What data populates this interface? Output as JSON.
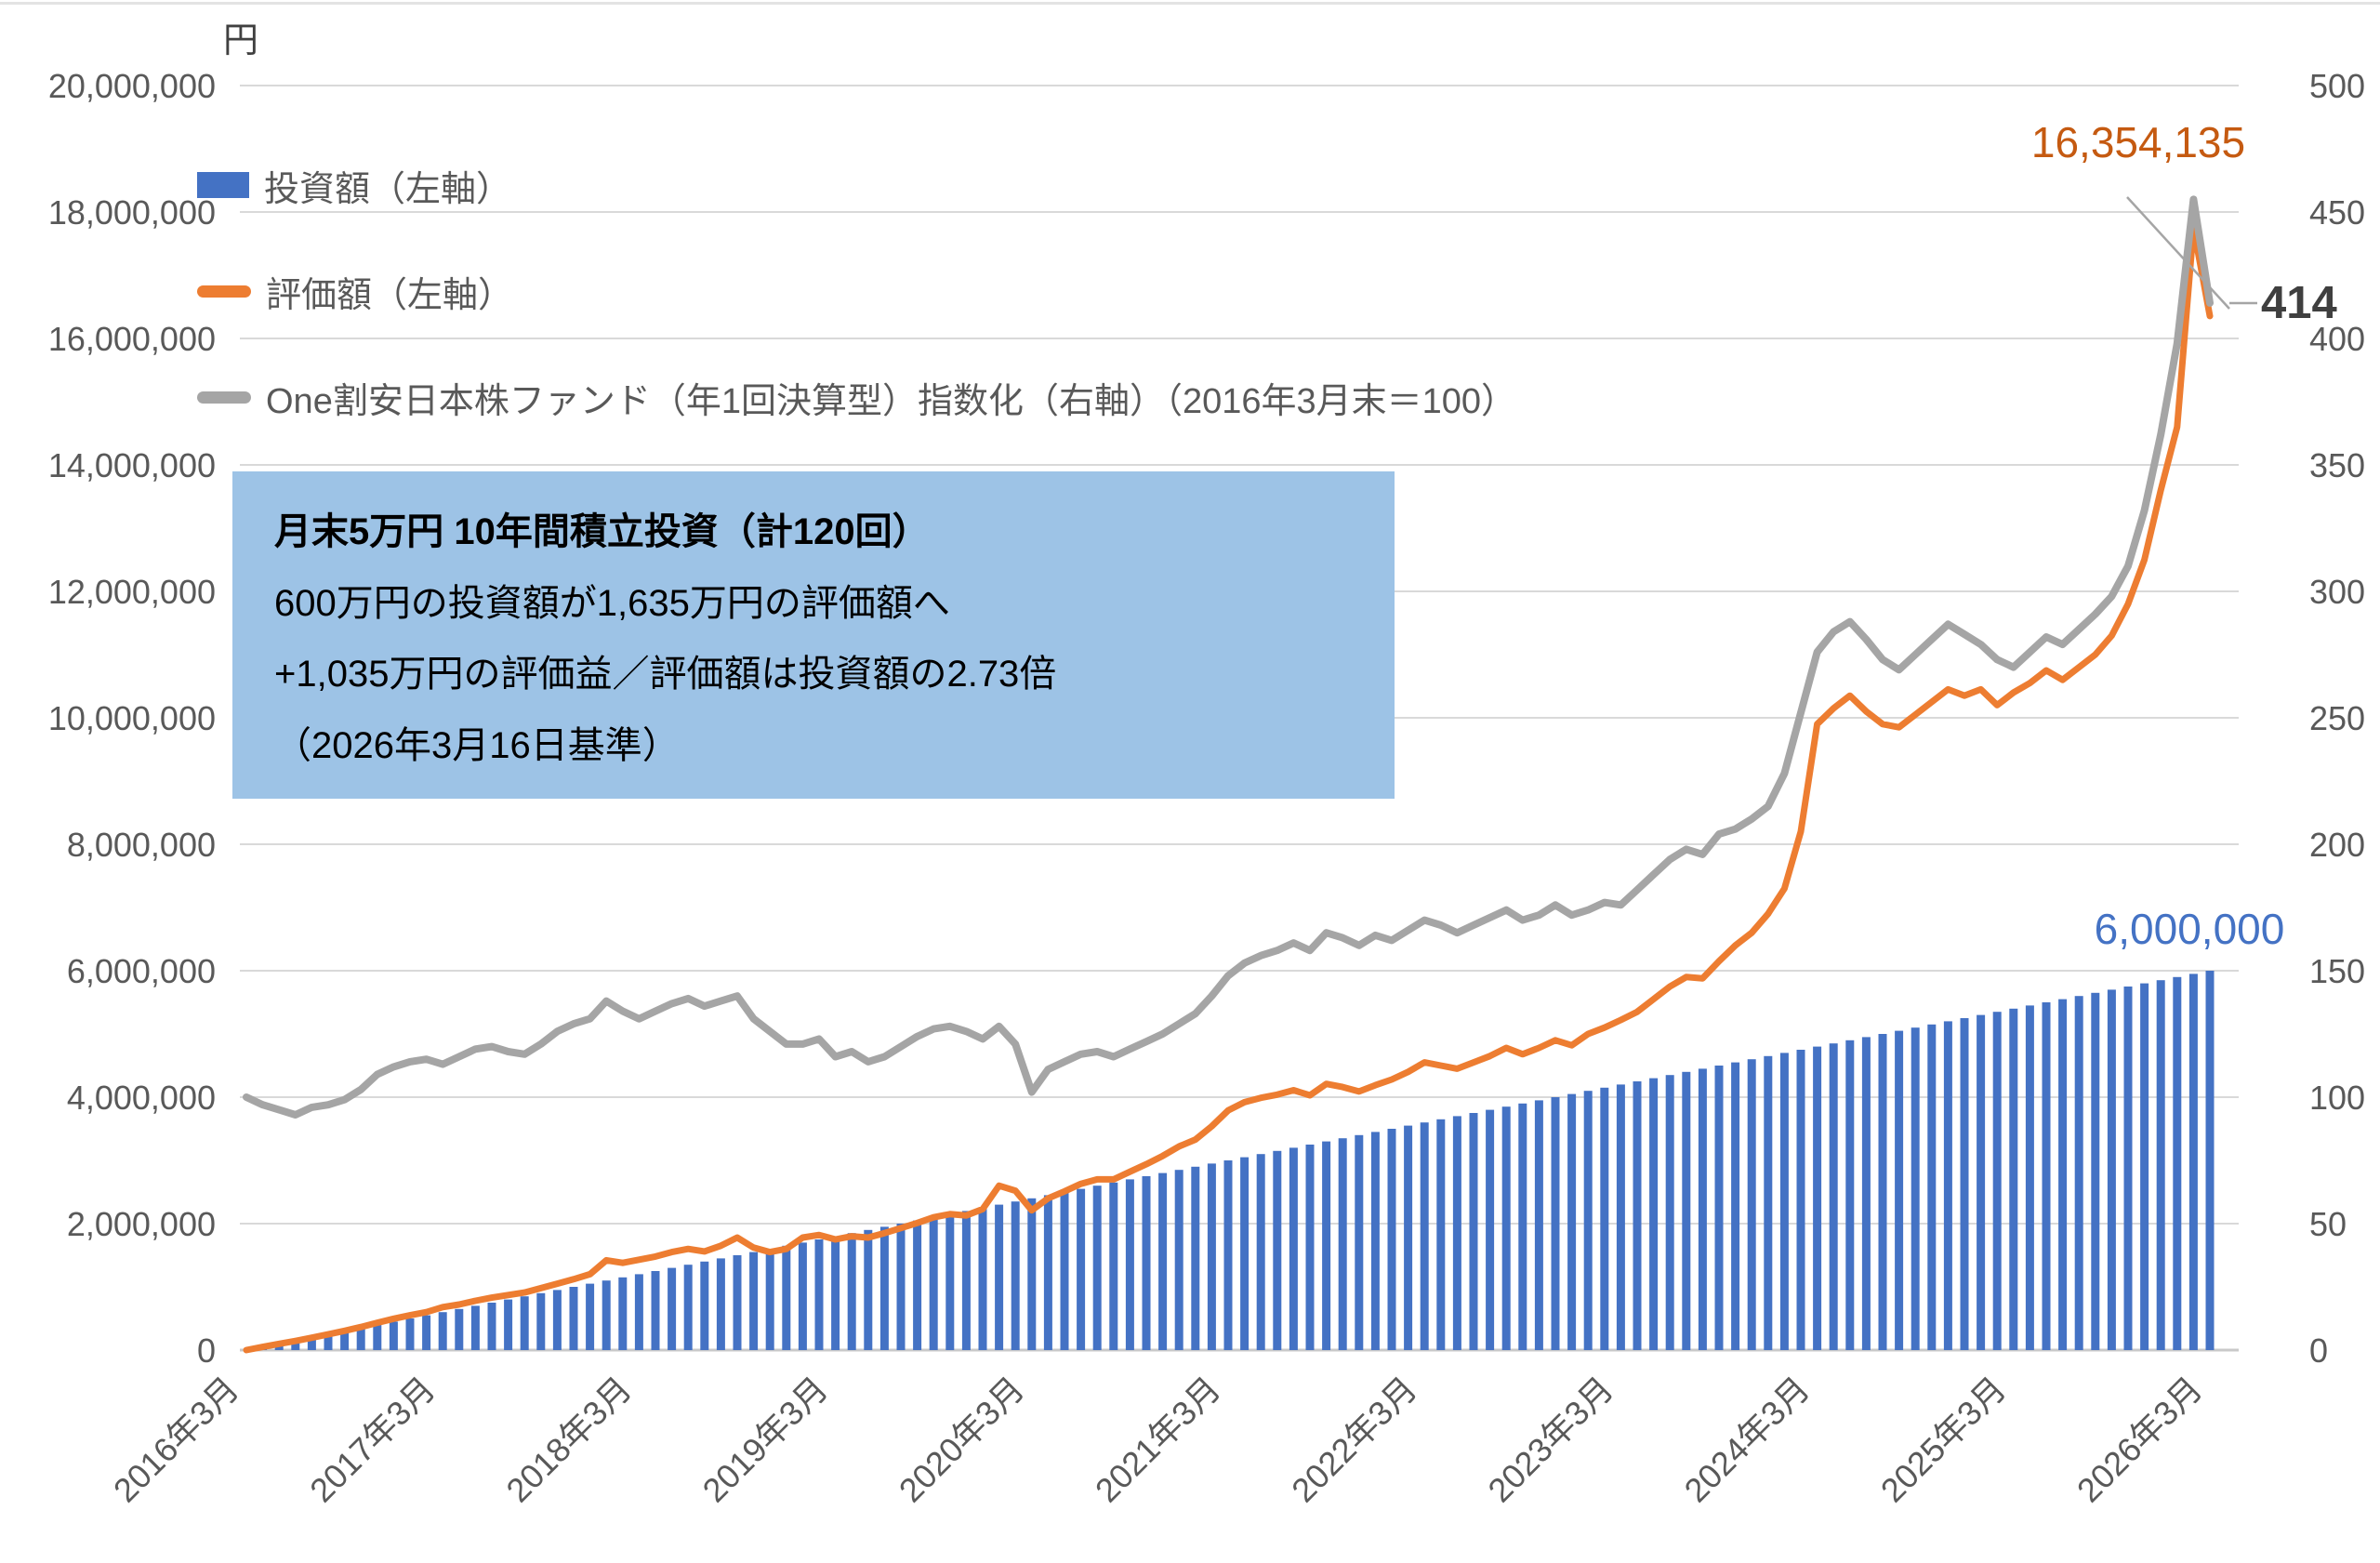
{
  "unit_label": "円",
  "info_box": {
    "title": "月末5万円 10年間積立投資（計120回）",
    "line2": "600万円の投資額が1,635万円の評価額へ",
    "line3": "+1,035万円の評価益／評価額は投資額の2.73倍",
    "line4": "（2026年3月16日基準）",
    "bg_color": "#9DC3E6"
  },
  "data_labels": {
    "valuation_end": "16,354,135",
    "index_end": "414",
    "investment_end": "6,000,000"
  },
  "colors": {
    "bar_blue": "#4472C4",
    "line_orange": "#ED7D31",
    "line_gray": "#A5A5A5",
    "axis_text": "#595959",
    "gridline": "#D9D9D9",
    "baseline": "#C9C9C9",
    "leader": "#A5A5A5"
  },
  "chart_data": {
    "type": "combo",
    "grid": true,
    "legend_position": "top-left-inside",
    "x_start_month": "2016-03",
    "x_tick_labels": [
      "2016年3月",
      "2017年3月",
      "2018年3月",
      "2019年3月",
      "2020年3月",
      "2021年3月",
      "2022年3月",
      "2023年3月",
      "2024年3月",
      "2025年3月",
      "2026年3月"
    ],
    "left_axis": {
      "unit": "円",
      "min": 0,
      "max": 20000000,
      "step": 2000000
    },
    "right_axis": {
      "min": 0,
      "max": 500,
      "step": 50
    },
    "legend": {
      "items": [
        {
          "label": "投資額（左軸）",
          "swatch": "bar",
          "color": "#4472C4"
        },
        {
          "label": "評価額（左軸）",
          "swatch": "line",
          "color": "#ED7D31"
        },
        {
          "label": "One割安日本株ファンド（年1回決算型）指数化（右軸）（2016年3月末＝100）",
          "swatch": "line",
          "color": "#A5A5A5"
        }
      ]
    },
    "series": [
      {
        "name": "投資額（左軸）",
        "type": "bar",
        "axis": "left",
        "color": "#4472C4",
        "start_month_offset": 1,
        "values": [
          50000,
          100000,
          150000,
          200000,
          250000,
          300000,
          350000,
          400000,
          450000,
          500000,
          550000,
          600000,
          650000,
          700000,
          750000,
          800000,
          850000,
          900000,
          950000,
          1000000,
          1050000,
          1100000,
          1150000,
          1200000,
          1250000,
          1300000,
          1350000,
          1400000,
          1450000,
          1500000,
          1550000,
          1600000,
          1650000,
          1700000,
          1750000,
          1800000,
          1850000,
          1900000,
          1950000,
          2000000,
          2050000,
          2100000,
          2150000,
          2200000,
          2250000,
          2300000,
          2350000,
          2400000,
          2450000,
          2500000,
          2550000,
          2600000,
          2650000,
          2700000,
          2750000,
          2800000,
          2850000,
          2900000,
          2950000,
          3000000,
          3050000,
          3100000,
          3150000,
          3200000,
          3250000,
          3300000,
          3350000,
          3400000,
          3450000,
          3500000,
          3550000,
          3600000,
          3650000,
          3700000,
          3750000,
          3800000,
          3850000,
          3900000,
          3950000,
          4000000,
          4050000,
          4100000,
          4150000,
          4200000,
          4250000,
          4300000,
          4350000,
          4400000,
          4450000,
          4500000,
          4550000,
          4600000,
          4650000,
          4700000,
          4750000,
          4800000,
          4850000,
          4900000,
          4950000,
          5000000,
          5050000,
          5100000,
          5150000,
          5200000,
          5250000,
          5300000,
          5350000,
          5400000,
          5450000,
          5500000,
          5550000,
          5600000,
          5650000,
          5700000,
          5750000,
          5800000,
          5850000,
          5900000,
          5950000,
          6000000
        ]
      },
      {
        "name": "評価額（左軸）",
        "type": "line",
        "axis": "left",
        "color": "#ED7D31",
        "start_month_offset": 0,
        "values": [
          0,
          50000,
          98000,
          144000,
          196000,
          248000,
          305000,
          365000,
          432000,
          495000,
          550000,
          600000,
          680000,
          720000,
          780000,
          830000,
          870000,
          910000,
          980000,
          1050000,
          1120000,
          1200000,
          1420000,
          1380000,
          1430000,
          1480000,
          1550000,
          1600000,
          1560000,
          1650000,
          1780000,
          1620000,
          1550000,
          1600000,
          1780000,
          1820000,
          1750000,
          1800000,
          1780000,
          1850000,
          1930000,
          2010000,
          2100000,
          2150000,
          2130000,
          2230000,
          2600000,
          2520000,
          2210000,
          2400000,
          2510000,
          2630000,
          2700000,
          2700000,
          2820000,
          2940000,
          3070000,
          3220000,
          3330000,
          3540000,
          3790000,
          3920000,
          3990000,
          4040000,
          4110000,
          4030000,
          4210000,
          4160000,
          4090000,
          4190000,
          4280000,
          4400000,
          4550000,
          4500000,
          4450000,
          4550000,
          4650000,
          4780000,
          4680000,
          4780000,
          4900000,
          4820000,
          5000000,
          5100000,
          5220000,
          5350000,
          5550000,
          5750000,
          5900000,
          5880000,
          6150000,
          6400000,
          6600000,
          6900000,
          7300000,
          8200000,
          9900000,
          10150000,
          10350000,
          10100000,
          9900000,
          9850000,
          10050000,
          10250000,
          10450000,
          10350000,
          10450000,
          10200000,
          10400000,
          10550000,
          10750000,
          10600000,
          10800000,
          11000000,
          11300000,
          11800000,
          12500000,
          13600000,
          14600000,
          17750000,
          16354135
        ]
      },
      {
        "name": "One割安日本株ファンド（年1回決算型）指数化（右軸）（2016年3月末＝100）",
        "type": "line",
        "axis": "right",
        "color": "#A5A5A5",
        "start_month_offset": 0,
        "values": [
          100,
          97,
          95,
          93,
          96,
          97,
          99,
          103,
          109,
          112,
          114,
          115,
          113,
          116,
          119,
          120,
          118,
          117,
          121,
          126,
          129,
          131,
          138,
          134,
          131,
          134,
          137,
          139,
          136,
          138,
          140,
          131,
          126,
          121,
          121,
          123,
          116,
          118,
          114,
          116,
          120,
          124,
          127,
          128,
          126,
          123,
          128,
          121,
          102,
          111,
          114,
          117,
          118,
          116,
          119,
          122,
          125,
          129,
          133,
          140,
          148,
          153,
          156,
          158,
          161,
          158,
          165,
          163,
          160,
          164,
          162,
          166,
          170,
          168,
          165,
          168,
          171,
          174,
          170,
          172,
          176,
          172,
          174,
          177,
          176,
          182,
          188,
          194,
          198,
          196,
          204,
          206,
          210,
          215,
          228,
          252,
          276,
          284,
          288,
          281,
          273,
          269,
          275,
          281,
          287,
          283,
          279,
          273,
          270,
          276,
          282,
          279,
          285,
          291,
          298,
          310,
          332,
          362,
          398,
          455,
          414
        ]
      }
    ]
  }
}
